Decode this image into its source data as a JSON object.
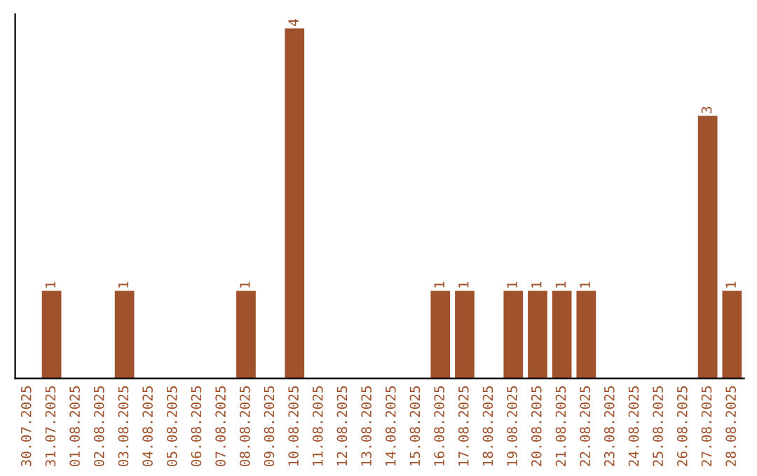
{
  "chart_data": {
    "type": "bar",
    "categories": [
      "30.07.2025",
      "31.07.2025",
      "01.08.2025",
      "02.08.2025",
      "03.08.2025",
      "04.08.2025",
      "05.08.2025",
      "06.08.2025",
      "07.08.2025",
      "08.08.2025",
      "09.08.2025",
      "10.08.2025",
      "11.08.2025",
      "12.08.2025",
      "13.08.2025",
      "14.08.2025",
      "15.08.2025",
      "16.08.2025",
      "17.08.2025",
      "18.08.2025",
      "19.08.2025",
      "20.08.2025",
      "21.08.2025",
      "22.08.2025",
      "23.08.2025",
      "24.08.2025",
      "25.08.2025",
      "26.08.2025",
      "27.08.2025",
      "28.08.2025"
    ],
    "values": [
      0,
      1,
      0,
      0,
      1,
      0,
      0,
      0,
      0,
      1,
      0,
      4,
      0,
      0,
      0,
      0,
      0,
      1,
      1,
      0,
      1,
      1,
      1,
      1,
      0,
      0,
      0,
      0,
      3,
      1
    ],
    "value_labels": [
      null,
      "1",
      null,
      null,
      "1",
      null,
      null,
      null,
      null,
      "1",
      null,
      "4",
      null,
      null,
      null,
      null,
      null,
      "1",
      "1",
      null,
      "1",
      "1",
      "1",
      "1",
      null,
      null,
      null,
      null,
      "3",
      "1"
    ],
    "color": "#a0522d",
    "tick_labels": "x",
    "grid": false,
    "legend": false
  }
}
